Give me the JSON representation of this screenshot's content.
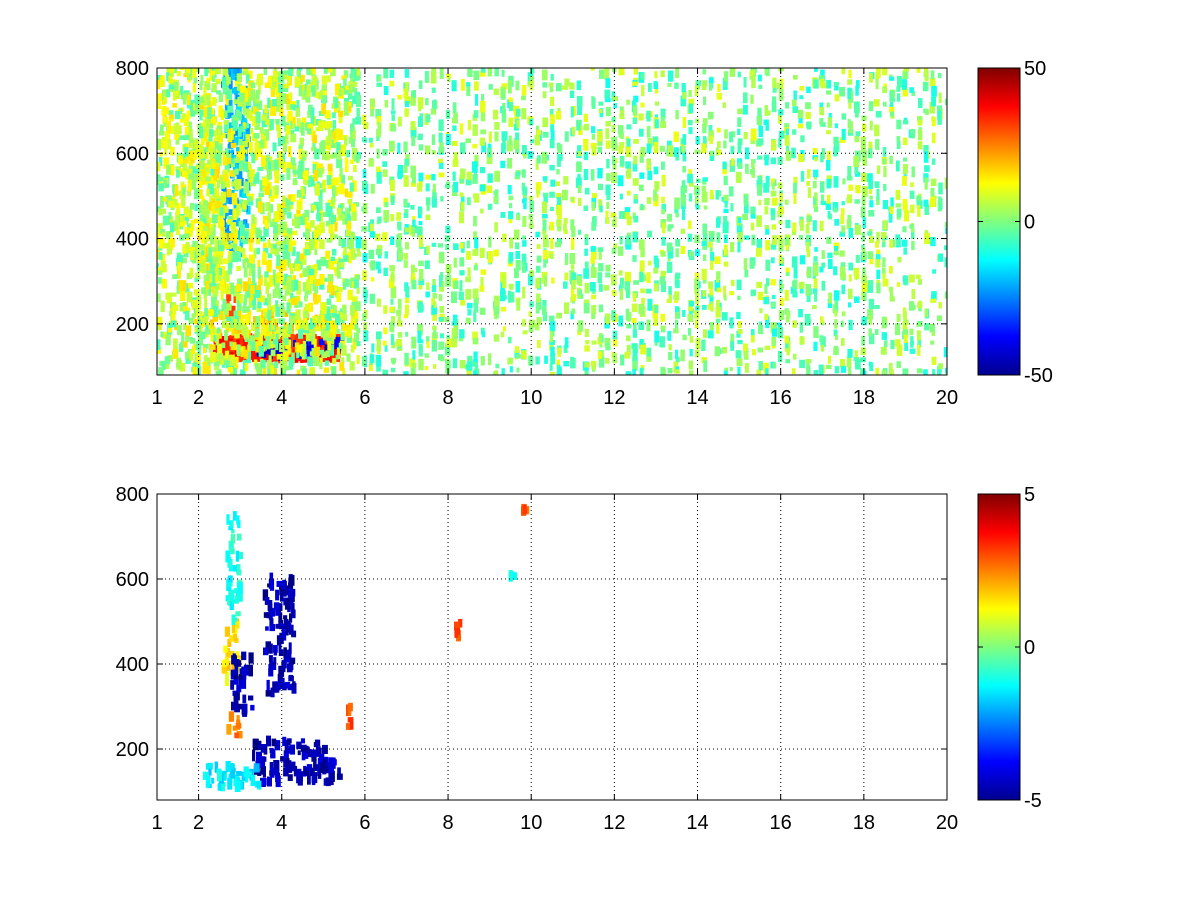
{
  "figure": {
    "background": "#ffffff"
  },
  "chart_data": [
    {
      "type": "heatmap",
      "title": "",
      "xlabel": "",
      "ylabel": "",
      "xlim": [
        1,
        20
      ],
      "ylim": [
        80,
        800
      ],
      "x_ticks": [
        1,
        2,
        4,
        6,
        8,
        10,
        12,
        14,
        16,
        18,
        20
      ],
      "y_ticks": [
        200,
        400,
        600,
        800
      ],
      "grid": true,
      "colormap": "jet",
      "clim": [
        -50,
        50
      ],
      "colorbar_ticks": [
        -50,
        0,
        50
      ],
      "features": [
        {
          "x": [
            2.4,
            5.4
          ],
          "y": [
            120,
            165
          ],
          "value": 35,
          "note": "strong band"
        },
        {
          "x": [
            2.0,
            5.4
          ],
          "y": [
            170,
            230
          ],
          "value": 15
        },
        {
          "x": [
            3.4,
            5.5
          ],
          "y": [
            125,
            160
          ],
          "value": -40
        },
        {
          "x": [
            2.6,
            3.2
          ],
          "y": [
            350,
            800
          ],
          "value": -20
        },
        {
          "x": [
            2.0,
            2.6
          ],
          "y": [
            320,
            700
          ],
          "value": 12
        },
        {
          "x": [
            2.7,
            2.9
          ],
          "y": [
            220,
            270
          ],
          "value": 28
        },
        {
          "x": [
            1.0,
            5.8
          ],
          "y": [
            80,
            800
          ],
          "value": 5,
          "note": "dense speckle"
        },
        {
          "x": [
            5.8,
            20.0
          ],
          "y": [
            80,
            800
          ],
          "value": 0,
          "note": "sparse speckle"
        }
      ]
    },
    {
      "type": "heatmap",
      "title": "",
      "xlabel": "",
      "ylabel": "",
      "xlim": [
        1,
        20
      ],
      "ylim": [
        80,
        800
      ],
      "x_ticks": [
        1,
        2,
        4,
        6,
        8,
        10,
        12,
        14,
        16,
        18,
        20
      ],
      "y_ticks": [
        200,
        400,
        600,
        800
      ],
      "grid": true,
      "colormap": "jet",
      "clim": [
        -5,
        5
      ],
      "colorbar_ticks": [
        -5,
        0,
        5
      ],
      "features": [
        {
          "x": [
            3.3,
            5.4
          ],
          "y": [
            120,
            220
          ],
          "value": -4.5
        },
        {
          "x": [
            2.0,
            3.5
          ],
          "y": [
            110,
            160
          ],
          "value": -1.5
        },
        {
          "x": [
            2.7,
            3.0
          ],
          "y": [
            230,
            280
          ],
          "value": 2.5
        },
        {
          "x": [
            2.6,
            3.0
          ],
          "y": [
            350,
            500
          ],
          "value": 1.5
        },
        {
          "x": [
            2.8,
            3.3
          ],
          "y": [
            280,
            420
          ],
          "value": -4.5
        },
        {
          "x": [
            3.6,
            4.3
          ],
          "y": [
            330,
            610
          ],
          "value": -4.5
        },
        {
          "x": [
            2.7,
            3.0
          ],
          "y": [
            500,
            750
          ],
          "value": -1.0
        },
        {
          "x": [
            8.2,
            8.3
          ],
          "y": [
            460,
            500
          ],
          "value": 3.0
        },
        {
          "x": [
            9.8,
            9.9
          ],
          "y": [
            760,
            765
          ],
          "value": 3.0
        },
        {
          "x": [
            9.5,
            9.6
          ],
          "y": [
            605,
            610
          ],
          "value": -1.0
        },
        {
          "x": [
            5.6,
            5.7
          ],
          "y": [
            250,
            300
          ],
          "value": 3.0
        }
      ]
    }
  ]
}
